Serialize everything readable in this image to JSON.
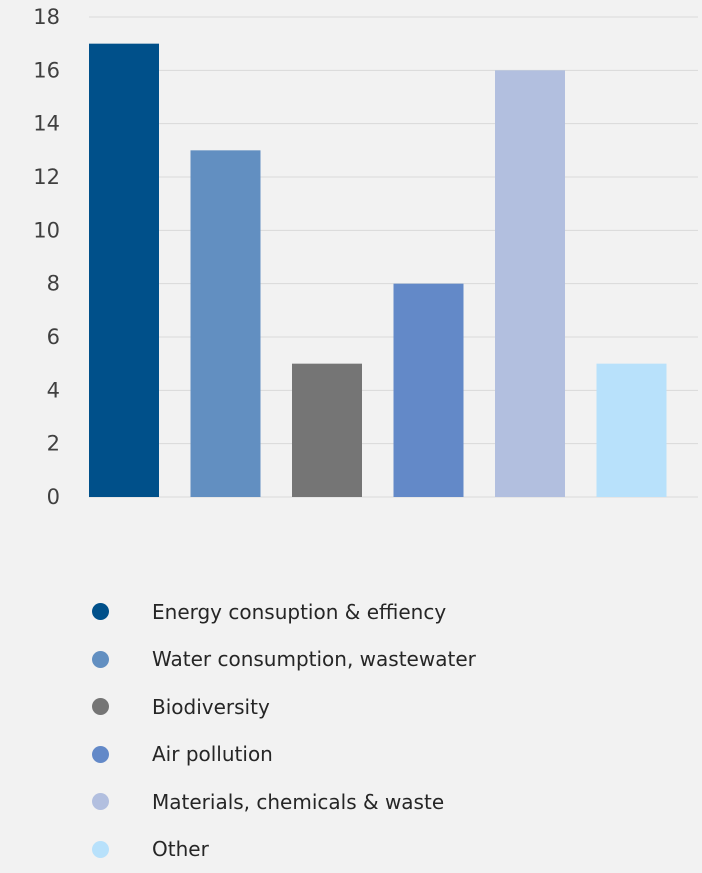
{
  "chart_data": {
    "type": "bar",
    "categories": [
      "Energy consuption & effiency",
      "Water consumption, wastewater",
      "Biodiversity",
      "Air pollution",
      "Materials, chemicals & waste",
      "Other"
    ],
    "values": [
      17,
      13,
      5,
      8,
      16,
      5
    ],
    "colors": [
      "#00508a",
      "#628fc1",
      "#757575",
      "#6389c8",
      "#b2bfdf",
      "#b8e1fb"
    ],
    "ylim": [
      0,
      18
    ],
    "yticks": [
      "0",
      "2",
      "4",
      "6",
      "8",
      "10",
      "12",
      "14",
      "16",
      "18"
    ],
    "grid": true,
    "legend_position": "bottom"
  }
}
